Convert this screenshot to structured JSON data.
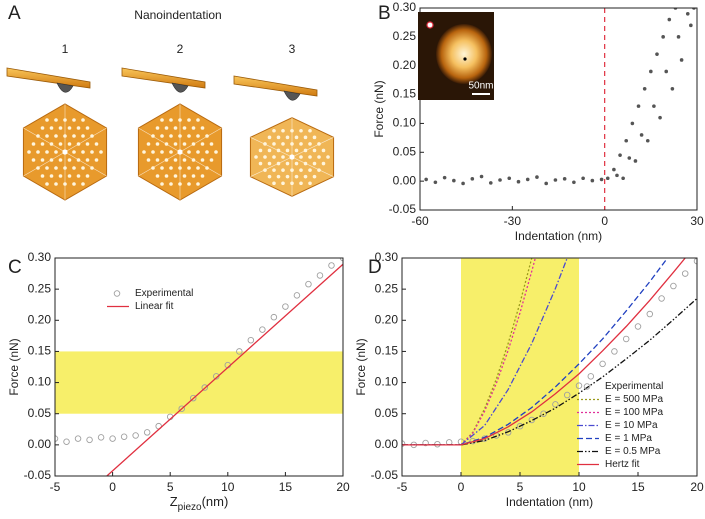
{
  "diagram": {
    "label": "A",
    "title": "Nanoindentation",
    "steps": [
      "1",
      "2",
      "3"
    ]
  },
  "chart_data": [
    {
      "type": "scatter",
      "label": "B",
      "xlabel": "Indentation (nm)",
      "ylabel": "Force (nN)",
      "inset_scale": "50nm",
      "xlim": [
        -60,
        30
      ],
      "xticks": [
        -60,
        -30,
        0,
        30
      ],
      "ylim": [
        -0.05,
        0.3
      ],
      "yticks": [
        -0.05,
        {
          "value": 0,
          "label": "0.00"
        },
        0.05,
        {
          "value": 0.1,
          "label": "0.10"
        },
        0.15,
        {
          "value": 0.2,
          "label": "0.20"
        },
        0.25,
        {
          "value": 0.3,
          "label": "0.30"
        }
      ],
      "vline": 0,
      "vline_color": "#e03040",
      "series": [
        {
          "type": "scatter",
          "color": "#555555",
          "filled": true,
          "x": [
            -58,
            -55,
            -52,
            -49,
            -46,
            -43,
            -40,
            -37,
            -34,
            -31,
            -28,
            -25,
            -22,
            -19,
            -16,
            -13,
            -10,
            -7,
            -4,
            -1,
            1,
            3,
            5,
            7,
            9,
            11,
            13,
            15,
            17,
            19,
            21,
            23,
            4,
            8,
            12,
            16,
            20,
            24,
            27,
            6,
            10,
            14,
            18,
            22,
            25,
            28,
            29
          ],
          "values": [
            0.003,
            -0.002,
            0.006,
            0.001,
            -0.004,
            0.004,
            0.008,
            -0.003,
            0.002,
            0.005,
            -0.001,
            0.003,
            0.007,
            -0.004,
            0.002,
            0.004,
            -0.002,
            0.005,
            0.001,
            0.003,
            0.005,
            0.02,
            0.045,
            0.07,
            0.1,
            0.13,
            0.16,
            0.19,
            0.22,
            0.25,
            0.28,
            0.3,
            0.01,
            0.04,
            0.08,
            0.13,
            0.19,
            0.25,
            0.29,
            0.005,
            0.035,
            0.07,
            0.11,
            0.16,
            0.21,
            0.27,
            0.3
          ]
        }
      ]
    },
    {
      "type": "line",
      "label": "C",
      "xlabel": [
        "Z",
        "piezo",
        "(nm)"
      ],
      "ylabel": "Force (nN)",
      "legend": "upper-left",
      "xlim": [
        -5,
        20
      ],
      "xticks": [
        -5,
        0,
        5,
        10,
        15,
        20
      ],
      "ylim": [
        -0.05,
        0.3
      ],
      "yticks": [
        -0.05,
        {
          "value": 0,
          "label": "0.00"
        },
        0.05,
        {
          "value": 0.1,
          "label": "0.10"
        },
        0.15,
        {
          "value": 0.2,
          "label": "0.20"
        },
        0.25,
        {
          "value": 0.3,
          "label": "0.30"
        }
      ],
      "yband": [
        0.05,
        0.15
      ],
      "band_color": "#f7ef6a",
      "series": [
        {
          "type": "scatter",
          "name": "Experimental",
          "color": "#a0a0a0",
          "filled": false,
          "x": [
            -5,
            -4,
            -3,
            -2,
            -1,
            0,
            1,
            2,
            3,
            4,
            5,
            6,
            7,
            8,
            9,
            10,
            11,
            12,
            13,
            14,
            15,
            16,
            17,
            18,
            19,
            20
          ],
          "values": [
            0.01,
            0.005,
            0.01,
            0.008,
            0.012,
            0.01,
            0.013,
            0.015,
            0.02,
            0.03,
            0.045,
            0.058,
            0.075,
            0.092,
            0.11,
            0.128,
            0.15,
            0.168,
            0.185,
            0.205,
            0.222,
            0.24,
            0.258,
            0.272,
            0.288,
            0.3
          ]
        },
        {
          "type": "line",
          "name": "Linear fit",
          "color": "#e03040",
          "dash": "solid",
          "x": [
            -0.5,
            20
          ],
          "values": [
            -0.05,
            0.29
          ]
        }
      ]
    },
    {
      "type": "line",
      "label": "D",
      "xlabel": "Indentation (nm)",
      "ylabel": "Force (nN)",
      "legend": "lower-right",
      "xlim": [
        -5,
        20
      ],
      "xticks": [
        -5,
        0,
        5,
        10,
        15,
        20
      ],
      "ylim": [
        -0.05,
        0.3
      ],
      "yticks": [
        -0.05,
        {
          "value": 0,
          "label": "0.00"
        },
        0.05,
        {
          "value": 0.1,
          "label": "0.10"
        },
        0.15,
        {
          "value": 0.2,
          "label": "0.20"
        },
        0.25,
        {
          "value": 0.3,
          "label": "0.30"
        }
      ],
      "xband": [
        0,
        10
      ],
      "band_color": "#f7ef6a",
      "series": [
        {
          "type": "scatter",
          "name": "Experimental",
          "color": "#a0a0a0",
          "filled": false,
          "x": [
            -5,
            -4,
            -3,
            -2,
            -1,
            0,
            1,
            2,
            3,
            4,
            5,
            6,
            7,
            8,
            9,
            10,
            11,
            12,
            13,
            14,
            15,
            16,
            17,
            18,
            19,
            20
          ],
          "values": [
            0.002,
            0.0,
            0.003,
            0.001,
            0.004,
            0.005,
            0.006,
            0.01,
            0.015,
            0.02,
            0.03,
            0.04,
            0.05,
            0.065,
            0.08,
            0.095,
            0.11,
            0.13,
            0.15,
            0.17,
            0.19,
            0.21,
            0.235,
            0.255,
            0.275,
            0.295
          ]
        },
        {
          "type": "line",
          "name": "E = 500 MPa",
          "color": "#9a9a1a",
          "dash": "dot",
          "x": [
            0,
            1,
            2,
            3,
            4,
            5,
            6
          ],
          "values": [
            0,
            0.02,
            0.058,
            0.106,
            0.163,
            0.228,
            0.3
          ]
        },
        {
          "type": "line",
          "name": "E = 100 MPa",
          "color": "#e0309a",
          "dash": "dot",
          "x": [
            0,
            1,
            2,
            3,
            4,
            5,
            6,
            6.3
          ],
          "values": [
            0,
            0.019,
            0.054,
            0.099,
            0.152,
            0.212,
            0.279,
            0.3
          ]
        },
        {
          "type": "line",
          "name": "E = 10 MPa",
          "color": "#4a4ad0",
          "dash": "dashdot",
          "x": [
            0,
            2,
            4,
            6,
            8,
            9
          ],
          "values": [
            0,
            0.031,
            0.089,
            0.163,
            0.251,
            0.3
          ]
        },
        {
          "type": "line",
          "name": "E = 1 MPa",
          "color": "#2040c0",
          "dash": "dash",
          "x": [
            -5,
            0,
            2,
            4,
            6,
            8,
            10,
            12,
            14,
            16,
            17.5
          ],
          "values": [
            0,
            0,
            0.012,
            0.033,
            0.06,
            0.093,
            0.13,
            0.17,
            0.215,
            0.262,
            0.3
          ]
        },
        {
          "type": "line",
          "name": "E = 0.5 MPa",
          "color": "#111111",
          "dash": "dashdotdot",
          "x": [
            -5,
            0,
            2,
            4,
            6,
            8,
            10,
            12,
            14,
            16,
            18,
            20
          ],
          "values": [
            0,
            0,
            0.007,
            0.021,
            0.039,
            0.059,
            0.083,
            0.109,
            0.138,
            0.168,
            0.201,
            0.235
          ]
        },
        {
          "type": "line",
          "name": "Hertz fit",
          "color": "#e03040",
          "dash": "solid",
          "x": [
            -5,
            0,
            2,
            4,
            6,
            8,
            10,
            12,
            14,
            16,
            18,
            19
          ],
          "values": [
            0,
            0,
            0.01,
            0.029,
            0.053,
            0.082,
            0.114,
            0.151,
            0.19,
            0.232,
            0.277,
            0.3
          ]
        }
      ]
    }
  ]
}
